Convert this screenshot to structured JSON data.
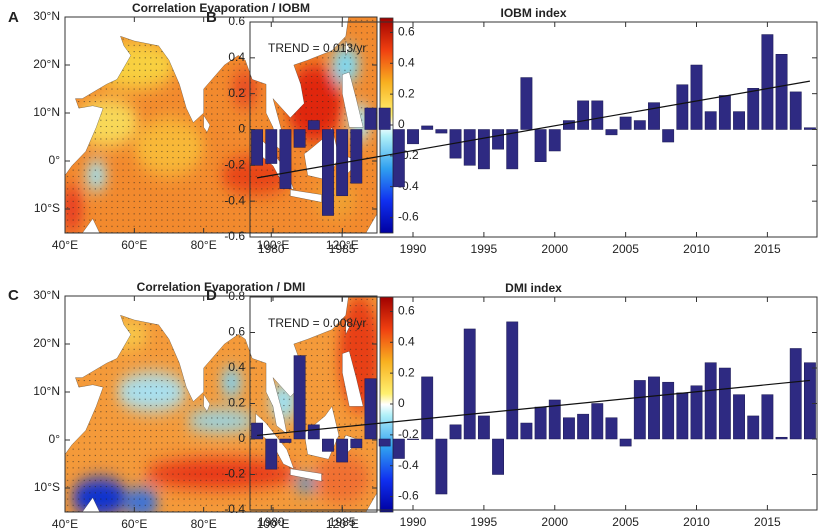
{
  "chart_data": [
    {
      "type": "map",
      "panel": "A",
      "title": "Correlation Evaporation / IOBM",
      "xlim": [
        40,
        130
      ],
      "xticks": [
        {
          "value": 40,
          "label": "40°E"
        },
        {
          "value": 60,
          "label": "60°E"
        },
        {
          "value": 80,
          "label": "80°E"
        },
        {
          "value": 100,
          "label": "100°E"
        },
        {
          "value": 120,
          "label": "120°E"
        }
      ],
      "ylim": [
        -15,
        30
      ],
      "yticks": [
        {
          "value": 30,
          "label": "30°N"
        },
        {
          "value": 20,
          "label": "20°N"
        },
        {
          "value": 10,
          "label": "10°N"
        },
        {
          "value": 0,
          "label": "0°"
        },
        {
          "value": -10,
          "label": "10°S"
        }
      ],
      "colorbar": {
        "lim": [
          -0.7,
          0.7
        ],
        "ticks": [
          0.6,
          0.4,
          0.2,
          0,
          -0.2,
          -0.4,
          -0.6
        ]
      }
    },
    {
      "type": "bar",
      "panel": "B",
      "title": "IOBM index",
      "color": "#2e2a82",
      "annotation": "TREND = 0.013/yr",
      "x": [
        1979,
        1980,
        1981,
        1982,
        1983,
        1984,
        1985,
        1986,
        1987,
        1988,
        1989,
        1990,
        1991,
        1992,
        1993,
        1994,
        1995,
        1996,
        1997,
        1998,
        1999,
        2000,
        2001,
        2002,
        2003,
        2004,
        2005,
        2006,
        2007,
        2008,
        2009,
        2010,
        2011,
        2012,
        2013,
        2014,
        2015,
        2016,
        2017,
        2018
      ],
      "values": [
        -0.2,
        -0.19,
        -0.33,
        -0.1,
        0.05,
        -0.48,
        -0.37,
        -0.3,
        0.12,
        0.12,
        -0.32,
        -0.08,
        0.02,
        -0.02,
        -0.16,
        -0.2,
        -0.22,
        -0.11,
        -0.22,
        0.29,
        -0.18,
        -0.12,
        0.05,
        0.16,
        0.16,
        -0.03,
        0.07,
        0.05,
        0.15,
        -0.07,
        0.25,
        0.36,
        0.1,
        0.19,
        0.1,
        0.23,
        0.53,
        0.42,
        0.21,
        0.01
      ],
      "trend": {
        "x": [
          1979,
          2018
        ],
        "values": [
          -0.27,
          0.27
        ]
      },
      "xlim": [
        1978.5,
        2018.5
      ],
      "xticks": [
        1980,
        1985,
        1990,
        1995,
        2000,
        2005,
        2010,
        2015
      ],
      "ylim": [
        -0.6,
        0.6
      ],
      "yticks": [
        0.6,
        0.4,
        0.2,
        0,
        -0.2,
        -0.4,
        -0.6
      ]
    },
    {
      "type": "map",
      "panel": "C",
      "title": "Correlation Evaporation / DMI",
      "xlim": [
        40,
        130
      ],
      "xticks": [
        {
          "value": 40,
          "label": "40°E"
        },
        {
          "value": 60,
          "label": "60°E"
        },
        {
          "value": 80,
          "label": "80°E"
        },
        {
          "value": 100,
          "label": "100°E"
        },
        {
          "value": 120,
          "label": "120°E"
        }
      ],
      "ylim": [
        -15,
        30
      ],
      "yticks": [
        {
          "value": 30,
          "label": "30°N"
        },
        {
          "value": 20,
          "label": "20°N"
        },
        {
          "value": 10,
          "label": "10°N"
        },
        {
          "value": 0,
          "label": "0°"
        },
        {
          "value": -10,
          "label": "10°S"
        }
      ],
      "colorbar": {
        "lim": [
          -0.7,
          0.7
        ],
        "ticks": [
          0.6,
          0.4,
          0.2,
          0,
          -0.2,
          -0.4,
          -0.6
        ]
      }
    },
    {
      "type": "bar",
      "panel": "D",
      "title": "DMI index",
      "color": "#2e2a82",
      "annotation": "TREND = 0.008/yr",
      "x": [
        1979,
        1980,
        1981,
        1982,
        1983,
        1984,
        1985,
        1986,
        1987,
        1988,
        1989,
        1990,
        1991,
        1992,
        1993,
        1994,
        1995,
        1996,
        1997,
        1998,
        1999,
        2000,
        2001,
        2002,
        2003,
        2004,
        2005,
        2006,
        2007,
        2008,
        2009,
        2010,
        2011,
        2012,
        2013,
        2014,
        2015,
        2016,
        2017,
        2018
      ],
      "values": [
        0.09,
        -0.17,
        -0.02,
        0.47,
        0.08,
        -0.07,
        -0.13,
        -0.05,
        0.34,
        -0.04,
        -0.11,
        0,
        0.35,
        -0.31,
        0.08,
        0.62,
        0.13,
        -0.2,
        0.66,
        0.09,
        0.18,
        0.22,
        0.12,
        0.14,
        0.2,
        0.12,
        -0.04,
        0.33,
        0.35,
        0.32,
        0.26,
        0.3,
        0.43,
        0.4,
        0.25,
        0.13,
        0.25,
        0.01,
        0.51,
        0.43
      ],
      "trend": {
        "x": [
          1979,
          2018
        ],
        "values": [
          0.02,
          0.33
        ]
      },
      "xlim": [
        1978.5,
        2018.5
      ],
      "xticks": [
        1980,
        1985,
        1990,
        1995,
        2000,
        2005,
        2010,
        2015
      ],
      "ylim": [
        -0.4,
        0.8
      ],
      "yticks": [
        0.8,
        0.6,
        0.4,
        0.2,
        0,
        -0.2,
        -0.4
      ]
    }
  ]
}
